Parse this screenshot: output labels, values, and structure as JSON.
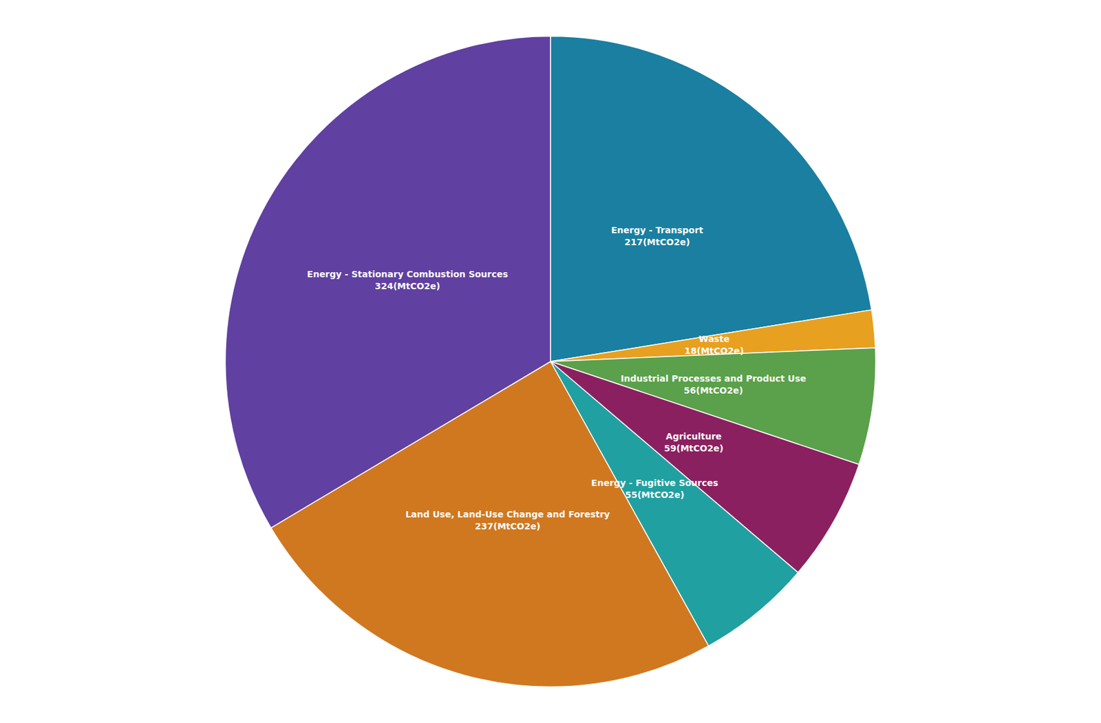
{
  "chart_data": {
    "type": "pie",
    "categories": [
      "Energy - Transport\n217(MtCO2e)",
      "Waste\n18(MtCO2e)",
      "Industrial Processes and Product Use\n56(MtCO2e)",
      "Agriculture\n59(MtCO2e)",
      "Energy - Fugitive Sources\n55(MtCO2e)",
      "Land Use, Land-Use Change and Forestry\n237(MtCO2e)",
      "Energy - Stationary Combustion Sources\n324(MtCO2e)"
    ],
    "values": [
      217,
      18,
      56,
      59,
      55,
      237,
      324
    ],
    "colors": [
      "#1a7fa0",
      "#e8a020",
      "#5ba04a",
      "#8b2060",
      "#20a0a0",
      "#d07820",
      "#6040a0"
    ],
    "legend": false
  }
}
